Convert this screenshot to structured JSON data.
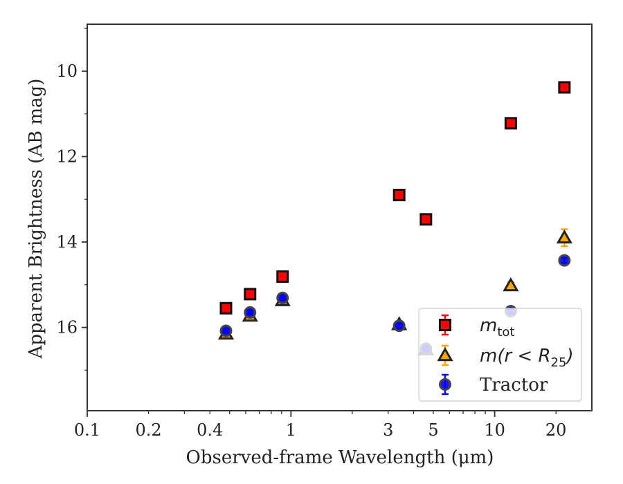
{
  "chart_data": {
    "type": "scatter",
    "xlabel": "Observed-frame Wavelength (μm)",
    "ylabel": "Apparent Brightness (AB mag)",
    "x_scale": "log",
    "xlim": [
      0.1,
      30
    ],
    "ylim": [
      17.95,
      8.9
    ],
    "y_inverted": true,
    "x_ticks": [
      {
        "value": 0.1,
        "label": "0.1"
      },
      {
        "value": 0.2,
        "label": "0.2"
      },
      {
        "value": 0.4,
        "label": "0.4"
      },
      {
        "value": 1,
        "label": "1"
      },
      {
        "value": 3,
        "label": "3"
      },
      {
        "value": 5,
        "label": "5"
      },
      {
        "value": 10,
        "label": "10"
      },
      {
        "value": 20,
        "label": "20"
      }
    ],
    "y_ticks": [
      {
        "value": 10,
        "label": "10"
      },
      {
        "value": 12,
        "label": "12"
      },
      {
        "value": 14,
        "label": "14"
      },
      {
        "value": 16,
        "label": "16"
      }
    ],
    "grid": false,
    "legend_position": "lower-right",
    "series": [
      {
        "name": "m_tot",
        "legend_main": "m",
        "legend_sub": "tot",
        "marker": "square",
        "color": "#ff0000",
        "ecolor": "#ff0000",
        "points": [
          {
            "x": 0.48,
            "y": 15.55
          },
          {
            "x": 0.63,
            "y": 15.22
          },
          {
            "x": 0.91,
            "y": 14.81
          },
          {
            "x": 3.4,
            "y": 12.9
          },
          {
            "x": 4.6,
            "y": 13.47
          },
          {
            "x": 12,
            "y": 11.22
          },
          {
            "x": 22,
            "y": 10.38
          }
        ]
      },
      {
        "name": "m(r < R_25)",
        "legend_main": "m(r < R",
        "legend_sub": "25",
        "legend_tail": ")",
        "marker": "triangle",
        "color": "#ffa500",
        "ecolor": "#ffa500",
        "points": [
          {
            "x": 0.48,
            "y": 16.15,
            "err": 0.05
          },
          {
            "x": 0.63,
            "y": 15.73,
            "err": 0.05
          },
          {
            "x": 0.91,
            "y": 15.37,
            "err": 0.05
          },
          {
            "x": 3.4,
            "y": 15.93,
            "err": 0.05
          },
          {
            "x": 4.6,
            "y": 16.52,
            "err": 0.05
          },
          {
            "x": 12,
            "y": 15.02,
            "err": 0.08
          },
          {
            "x": 22,
            "y": 13.9,
            "err": 0.2
          }
        ]
      },
      {
        "name": "Tractor",
        "legend_main": "Tractor",
        "marker": "circle",
        "color": "#0000ff",
        "ecolor": "#0000ff",
        "points": [
          {
            "x": 0.48,
            "y": 16.08,
            "err": 0.05
          },
          {
            "x": 0.63,
            "y": 15.65,
            "err": 0.05
          },
          {
            "x": 0.91,
            "y": 15.31,
            "err": 0.05
          },
          {
            "x": 3.4,
            "y": 15.96,
            "err": 0.05
          },
          {
            "x": 4.6,
            "y": 16.5,
            "err": 0.05
          },
          {
            "x": 12,
            "y": 15.62,
            "err": 0.05
          },
          {
            "x": 22,
            "y": 14.43,
            "err": 0.06
          }
        ]
      }
    ]
  }
}
